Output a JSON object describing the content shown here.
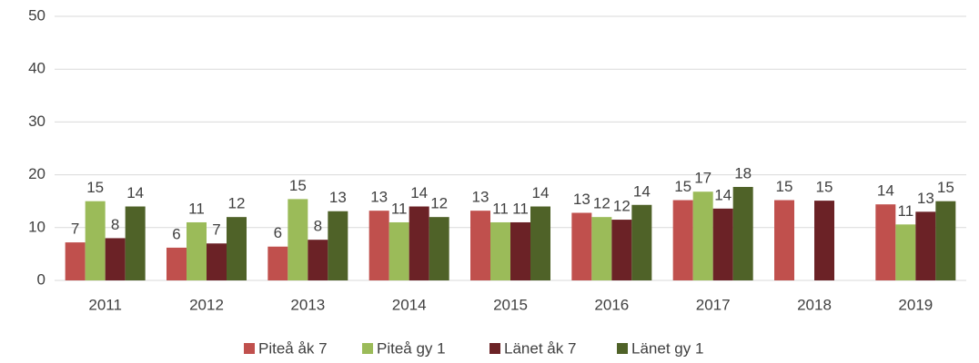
{
  "chart_data": {
    "type": "bar",
    "categories": [
      "2011",
      "2012",
      "2013",
      "2014",
      "2015",
      "2016",
      "2017",
      "2018",
      "2019"
    ],
    "series": [
      {
        "name": "Piteå åk 7",
        "color": "#c0504d",
        "values": [
          7.2,
          6.2,
          6.4,
          13.2,
          13.2,
          12.8,
          15.2,
          15.2,
          14.4
        ],
        "value_labels": [
          "7",
          "6",
          "6",
          "13",
          "13",
          "13",
          "15",
          "15",
          "14"
        ]
      },
      {
        "name": "Piteå gy 1",
        "color": "#9bbb59",
        "values": [
          15.0,
          11.0,
          15.4,
          11.0,
          11.0,
          12.0,
          16.8,
          null,
          10.6
        ],
        "value_labels": [
          "15",
          "11",
          "15",
          "11",
          "11",
          "12",
          "17",
          null,
          "11"
        ]
      },
      {
        "name": "Länet åk 7",
        "color": "#6b2226",
        "values": [
          8.0,
          7.0,
          7.7,
          14.0,
          11.0,
          11.5,
          13.6,
          15.1,
          13.0
        ],
        "value_labels": [
          "8",
          "7",
          "8",
          "14",
          "11",
          "12",
          "14",
          "15",
          "13"
        ]
      },
      {
        "name": "Länet gy 1",
        "color": "#4f6228",
        "values": [
          14.0,
          12.0,
          13.1,
          12.0,
          14.0,
          14.3,
          17.7,
          null,
          15.0
        ],
        "value_labels": [
          "14",
          "12",
          "13",
          "12",
          "14",
          "14",
          "18",
          null,
          "15"
        ]
      }
    ],
    "ylim": [
      0,
      50
    ],
    "yticks": [
      0,
      10,
      20,
      30,
      40,
      50
    ],
    "grid": true,
    "legend": "bottom"
  }
}
